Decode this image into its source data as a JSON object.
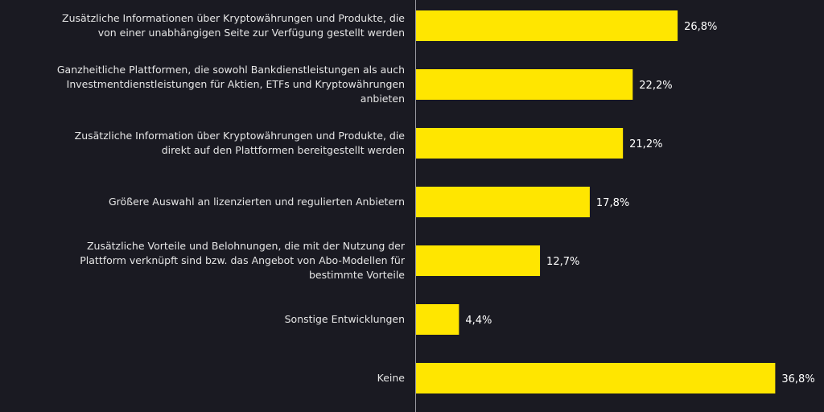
{
  "chart_data": {
    "type": "bar",
    "orientation": "horizontal",
    "categories": [
      "Zusätzliche Informationen über Kryptowährungen und Produkte, die von einer unabhängigen Seite zur Verfügung gestellt werden",
      "Ganzheitliche Plattformen, die sowohl Bankdienstleistungen als auch Investmentdienstleistungen für Aktien, ETFs und Kryptowährungen anbieten",
      "Zusätzliche Information über Kryptowährungen und Produkte, die direkt auf den Plattformen bereitgestellt werden",
      "Größere Auswahl an lizenzierten und regulierten Anbietern",
      "Zusätzliche Vorteile und Belohnungen, die mit der Nutzung der Plattform verknüpft sind bzw. das Angebot von Abo-Modellen für bestimmte Vorteile",
      "Sonstige Entwicklungen",
      "Keine"
    ],
    "category_lines": [
      [
        "Zusätzliche Informationen über Kryptowährungen und Produkte, die",
        "von einer unabhängigen Seite zur Verfügung gestellt werden"
      ],
      [
        "Ganzheitliche Plattformen, die sowohl Bankdienstleistungen als auch",
        "Investmentdienstleistungen für Aktien, ETFs und Kryptowährungen",
        "anbieten"
      ],
      [
        "Zusätzliche Information über Kryptowährungen und Produkte, die",
        "direkt auf den Plattformen bereitgestellt werden"
      ],
      [
        "Größere Auswahl an lizenzierten und regulierten Anbietern"
      ],
      [
        "Zusätzliche Vorteile und Belohnungen, die mit der Nutzung der",
        "Plattform verknüpft sind bzw. das Angebot von Abo-Modellen für",
        "bestimmte Vorteile"
      ],
      [
        "Sonstige Entwicklungen"
      ],
      [
        "Keine"
      ]
    ],
    "values": [
      26.8,
      22.2,
      21.2,
      17.8,
      12.7,
      4.4,
      36.8
    ],
    "data_labels": [
      "26,8%",
      "22,2%",
      "21,2%",
      "17,8%",
      "12,7%",
      "4,4%",
      "36,8%"
    ],
    "xlim": [
      0,
      40
    ],
    "grid": false,
    "legend": "none",
    "colors": {
      "bar": "#ffe600",
      "background": "#1a1a22",
      "text": "#e6e6e6",
      "axis": "#9a9aa0"
    }
  }
}
